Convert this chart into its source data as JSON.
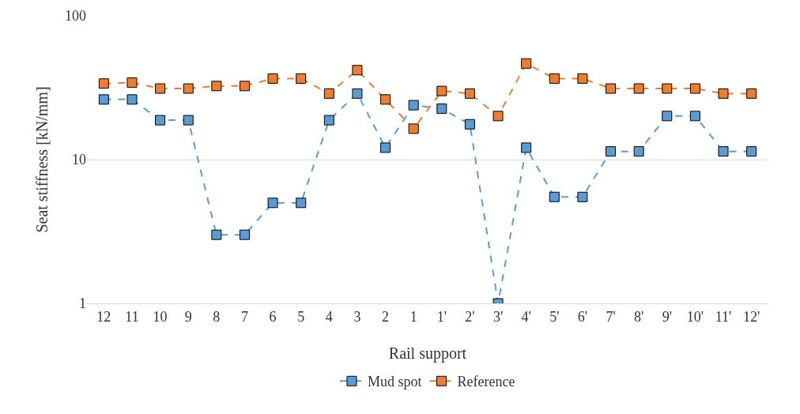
{
  "chart_data": {
    "type": "line",
    "xlabel": "Rail support",
    "ylabel": "Seat stiffness [kN/mm]",
    "categories": [
      "12",
      "11",
      "10",
      "9",
      "8",
      "7",
      "6",
      "5",
      "4",
      "3",
      "2",
      "1",
      "1'",
      "2'",
      "3'",
      "4'",
      "5'",
      "6'",
      "7'",
      "8'",
      "9'",
      "10'",
      "11'",
      "12'"
    ],
    "series": [
      {
        "name": "Mud spot",
        "color": "#5b9bd5",
        "values": [
          26.2,
          26.2,
          18.8,
          18.8,
          3.0,
          3.0,
          5.0,
          5.0,
          18.8,
          28.8,
          12.1,
          23.9,
          22.6,
          17.6,
          1,
          12.1,
          5.5,
          5.5,
          11.4,
          11.4,
          20.1,
          20.1,
          11.4,
          11.4
        ]
      },
      {
        "name": "Reference",
        "color": "#ed7d31",
        "values": [
          33.8,
          34.3,
          31.2,
          31.2,
          32.5,
          32.5,
          36.6,
          36.6,
          28.8,
          41.9,
          26.2,
          16.4,
          30.0,
          28.8,
          20.1,
          46.6,
          36.6,
          36.6,
          31.2,
          31.2,
          31.2,
          31.2,
          28.8,
          28.8
        ]
      }
    ],
    "log": "y",
    "ylim": [
      1,
      100
    ],
    "yticks": [
      1,
      10,
      100
    ],
    "grid": "y",
    "legend": "bottom",
    "marker": "square",
    "line_style": "dashed"
  }
}
